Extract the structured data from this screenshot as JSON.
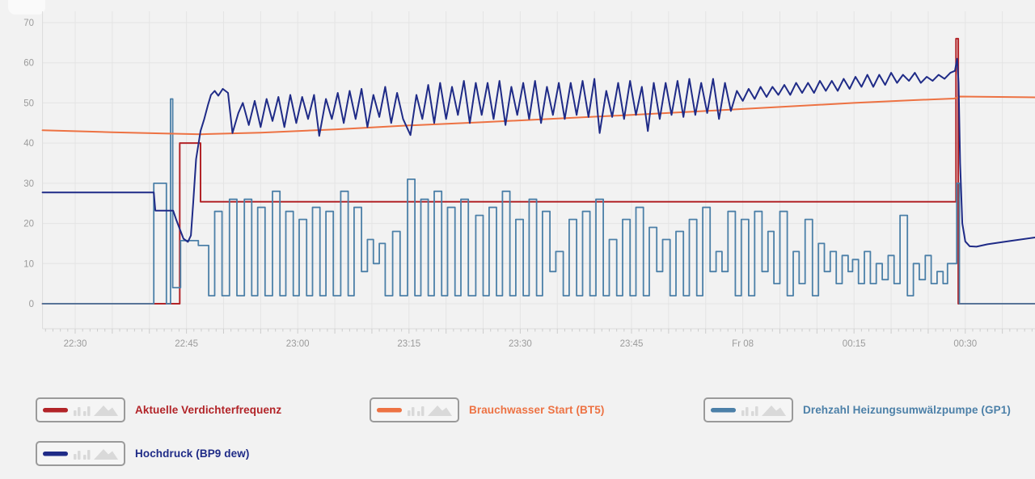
{
  "page": {
    "background": "#f2f2f2"
  },
  "axis_colors": {
    "grid": "#e4e4e4",
    "frame": "#dcdcdc",
    "tick": "#cccccc",
    "label_text": "#9b9b9b"
  },
  "chart_data": {
    "type": "line",
    "title": "",
    "xlabel": "",
    "ylabel": "",
    "x_axis": {
      "unit": "minutes since 22:30",
      "range": [
        -4.4,
        129.4
      ],
      "gridline_every_min": 5,
      "minor_tick_every_min": 1,
      "labels": [
        {
          "t": 0,
          "label": "22:30"
        },
        {
          "t": 15,
          "label": "22:45"
        },
        {
          "t": 30,
          "label": "23:00"
        },
        {
          "t": 45,
          "label": "23:15"
        },
        {
          "t": 60,
          "label": "23:30"
        },
        {
          "t": 75,
          "label": "23:45"
        },
        {
          "t": 90,
          "label": "Fr 08"
        },
        {
          "t": 105,
          "label": "00:15"
        },
        {
          "t": 120,
          "label": "00:30"
        }
      ]
    },
    "y_axis": {
      "ticks": [
        0,
        10,
        20,
        30,
        40,
        50,
        60,
        70
      ],
      "range": [
        0,
        70
      ],
      "grid": true
    },
    "series": [
      {
        "name": "Aktuelle Verdichterfrequenz",
        "color": "#b22428",
        "render": "step",
        "width": 2,
        "points": [
          [
            -4.4,
            0
          ],
          [
            14.1,
            40
          ],
          [
            16.9,
            25.4
          ],
          [
            118.75,
            66
          ],
          [
            119.05,
            0
          ],
          [
            129.4,
            0
          ]
        ]
      },
      {
        "name": "Drehzahl Heizungsumwälzpumpe (GP1)",
        "color": "#4c80a8",
        "render": "step",
        "width": 1.8,
        "points": [
          [
            -4.4,
            0
          ],
          [
            10.6,
            30
          ],
          [
            12.3,
            0
          ],
          [
            12.85,
            51
          ],
          [
            13.15,
            4
          ],
          [
            14.2,
            15.7
          ],
          [
            16.6,
            14.5
          ],
          [
            18.0,
            2
          ],
          [
            18.8,
            23
          ],
          [
            19.8,
            2
          ],
          [
            20.8,
            26
          ],
          [
            21.8,
            2
          ],
          [
            22.8,
            26
          ],
          [
            23.8,
            2
          ],
          [
            24.6,
            24
          ],
          [
            25.6,
            2
          ],
          [
            26.6,
            28
          ],
          [
            27.6,
            2
          ],
          [
            28.4,
            23
          ],
          [
            29.4,
            2
          ],
          [
            30.2,
            21
          ],
          [
            31.2,
            2
          ],
          [
            32.0,
            24
          ],
          [
            33.0,
            2
          ],
          [
            33.8,
            23
          ],
          [
            34.8,
            2
          ],
          [
            35.8,
            28
          ],
          [
            36.8,
            2
          ],
          [
            37.6,
            24
          ],
          [
            38.6,
            8
          ],
          [
            39.4,
            16
          ],
          [
            40.2,
            10
          ],
          [
            41.0,
            15
          ],
          [
            41.8,
            2
          ],
          [
            42.8,
            18
          ],
          [
            43.8,
            2
          ],
          [
            44.8,
            31
          ],
          [
            45.8,
            2
          ],
          [
            46.6,
            26
          ],
          [
            47.6,
            2
          ],
          [
            48.4,
            28
          ],
          [
            49.4,
            2
          ],
          [
            50.2,
            24
          ],
          [
            51.2,
            2
          ],
          [
            52.0,
            26
          ],
          [
            53.0,
            2
          ],
          [
            54.0,
            22
          ],
          [
            55.0,
            2
          ],
          [
            55.8,
            24
          ],
          [
            56.8,
            2
          ],
          [
            57.6,
            28
          ],
          [
            58.6,
            2
          ],
          [
            59.4,
            21
          ],
          [
            60.4,
            2
          ],
          [
            61.2,
            26
          ],
          [
            62.2,
            2
          ],
          [
            63.0,
            23
          ],
          [
            64.0,
            8
          ],
          [
            64.8,
            13
          ],
          [
            65.8,
            2
          ],
          [
            66.6,
            21
          ],
          [
            67.6,
            2
          ],
          [
            68.4,
            23
          ],
          [
            69.4,
            2
          ],
          [
            70.2,
            26
          ],
          [
            71.2,
            2
          ],
          [
            72.0,
            16
          ],
          [
            73.0,
            2
          ],
          [
            73.8,
            21
          ],
          [
            74.8,
            2
          ],
          [
            75.6,
            24
          ],
          [
            76.6,
            2
          ],
          [
            77.4,
            19
          ],
          [
            78.4,
            8
          ],
          [
            79.2,
            16
          ],
          [
            80.2,
            2
          ],
          [
            81.0,
            18
          ],
          [
            82.0,
            2
          ],
          [
            82.8,
            21
          ],
          [
            83.8,
            2
          ],
          [
            84.6,
            24
          ],
          [
            85.6,
            8
          ],
          [
            86.4,
            13
          ],
          [
            87.2,
            8
          ],
          [
            88.0,
            23
          ],
          [
            89.0,
            2
          ],
          [
            89.8,
            21
          ],
          [
            90.8,
            2
          ],
          [
            91.6,
            23
          ],
          [
            92.6,
            8
          ],
          [
            93.4,
            18
          ],
          [
            94.2,
            5
          ],
          [
            95.0,
            23
          ],
          [
            96.0,
            2
          ],
          [
            96.8,
            13
          ],
          [
            97.6,
            5
          ],
          [
            98.4,
            21
          ],
          [
            99.4,
            2
          ],
          [
            100.2,
            15
          ],
          [
            101.0,
            8
          ],
          [
            101.8,
            13
          ],
          [
            102.6,
            5
          ],
          [
            103.4,
            12
          ],
          [
            104.2,
            8
          ],
          [
            104.8,
            11
          ],
          [
            105.6,
            5
          ],
          [
            106.4,
            13
          ],
          [
            107.2,
            5
          ],
          [
            108.0,
            10
          ],
          [
            108.8,
            6
          ],
          [
            109.6,
            12
          ],
          [
            110.4,
            5
          ],
          [
            111.2,
            22
          ],
          [
            112.2,
            2
          ],
          [
            113.0,
            10
          ],
          [
            113.8,
            6
          ],
          [
            114.6,
            12
          ],
          [
            115.4,
            5
          ],
          [
            116.2,
            8
          ],
          [
            117.0,
            5
          ],
          [
            117.6,
            10
          ],
          [
            118.85,
            30
          ],
          [
            119.2,
            0
          ],
          [
            129.4,
            0
          ]
        ]
      },
      {
        "name": "Brauchwasser Start (BT5)",
        "color": "#ed7243",
        "render": "linear",
        "width": 2,
        "points": [
          [
            -4.4,
            43.2
          ],
          [
            5,
            42.7
          ],
          [
            12,
            42.4
          ],
          [
            17,
            42.2
          ],
          [
            25,
            42.6
          ],
          [
            35,
            43.4
          ],
          [
            45,
            44.4
          ],
          [
            55,
            45.2
          ],
          [
            65,
            46.1
          ],
          [
            75,
            47.0
          ],
          [
            85,
            48.0
          ],
          [
            95,
            49.0
          ],
          [
            105,
            50.0
          ],
          [
            113,
            50.7
          ],
          [
            118.5,
            51.1
          ],
          [
            119.3,
            51.6
          ],
          [
            129.4,
            51.4
          ]
        ]
      },
      {
        "name": "Hochdruck (BP9 dew)",
        "color": "#1f2b87",
        "render": "linear",
        "width": 2,
        "points": [
          [
            -4.4,
            27.7
          ],
          [
            10.6,
            27.7
          ],
          [
            10.8,
            23.2
          ],
          [
            13.2,
            23.2
          ],
          [
            13.6,
            21
          ],
          [
            14.6,
            16.2
          ],
          [
            15.2,
            15.4
          ],
          [
            15.6,
            17
          ],
          [
            15.9,
            25
          ],
          [
            16.3,
            36
          ],
          [
            16.9,
            43
          ],
          [
            17.4,
            46
          ],
          [
            17.9,
            49.5
          ],
          [
            18.3,
            52
          ],
          [
            18.8,
            53
          ],
          [
            19.3,
            51.8
          ],
          [
            19.9,
            53.5
          ],
          [
            20.6,
            52.5
          ],
          [
            21.2,
            42.5
          ],
          [
            22.0,
            47.5
          ],
          [
            22.6,
            50
          ],
          [
            23.4,
            44.5
          ],
          [
            24.2,
            50.5
          ],
          [
            25.0,
            44
          ],
          [
            25.8,
            51
          ],
          [
            26.6,
            45.5
          ],
          [
            27.4,
            51.5
          ],
          [
            28.2,
            44
          ],
          [
            29.0,
            52
          ],
          [
            29.8,
            45
          ],
          [
            30.6,
            51.5
          ],
          [
            31.4,
            46
          ],
          [
            32.2,
            52
          ],
          [
            32.9,
            41.8
          ],
          [
            33.8,
            51
          ],
          [
            34.6,
            46
          ],
          [
            35.4,
            52.5
          ],
          [
            36.2,
            45
          ],
          [
            37.0,
            53
          ],
          [
            37.8,
            46
          ],
          [
            38.6,
            53.5
          ],
          [
            39.4,
            44
          ],
          [
            40.2,
            52
          ],
          [
            41.0,
            46.5
          ],
          [
            41.8,
            54
          ],
          [
            42.6,
            45
          ],
          [
            43.4,
            52.5
          ],
          [
            44.2,
            46
          ],
          [
            45.2,
            42
          ],
          [
            46.0,
            52
          ],
          [
            46.8,
            46
          ],
          [
            47.6,
            54.5
          ],
          [
            48.4,
            45
          ],
          [
            49.2,
            55
          ],
          [
            50.0,
            46
          ],
          [
            50.8,
            54
          ],
          [
            51.6,
            47
          ],
          [
            52.4,
            55.5
          ],
          [
            53.2,
            45
          ],
          [
            54.0,
            55
          ],
          [
            54.8,
            47
          ],
          [
            55.6,
            55
          ],
          [
            56.4,
            46
          ],
          [
            57.2,
            55.5
          ],
          [
            58.0,
            44.5
          ],
          [
            58.8,
            54
          ],
          [
            59.6,
            47
          ],
          [
            60.4,
            55
          ],
          [
            61.2,
            46
          ],
          [
            62.0,
            55.5
          ],
          [
            62.8,
            45
          ],
          [
            63.6,
            54
          ],
          [
            64.4,
            47
          ],
          [
            65.2,
            55
          ],
          [
            66.0,
            46
          ],
          [
            66.8,
            55
          ],
          [
            67.6,
            47
          ],
          [
            68.4,
            55.5
          ],
          [
            69.2,
            46.5
          ],
          [
            70.0,
            56
          ],
          [
            70.7,
            42.5
          ],
          [
            71.6,
            53
          ],
          [
            72.4,
            46.5
          ],
          [
            73.2,
            55
          ],
          [
            74.0,
            46
          ],
          [
            74.8,
            55.5
          ],
          [
            75.6,
            47
          ],
          [
            76.4,
            54
          ],
          [
            77.2,
            43
          ],
          [
            78.0,
            55
          ],
          [
            78.8,
            46
          ],
          [
            79.6,
            55
          ],
          [
            80.4,
            47
          ],
          [
            81.2,
            55.5
          ],
          [
            82.0,
            46.5
          ],
          [
            82.8,
            56
          ],
          [
            83.6,
            47
          ],
          [
            84.4,
            55
          ],
          [
            85.2,
            47.5
          ],
          [
            86.0,
            56
          ],
          [
            86.8,
            46
          ],
          [
            87.6,
            55
          ],
          [
            88.4,
            48
          ],
          [
            89.2,
            53
          ],
          [
            90.0,
            50.5
          ],
          [
            90.8,
            53.5
          ],
          [
            91.6,
            51
          ],
          [
            92.4,
            54
          ],
          [
            93.2,
            51.5
          ],
          [
            94.0,
            54
          ],
          [
            94.8,
            52
          ],
          [
            95.6,
            54.5
          ],
          [
            96.4,
            52
          ],
          [
            97.2,
            55
          ],
          [
            98.0,
            52.5
          ],
          [
            98.8,
            55
          ],
          [
            99.6,
            52.5
          ],
          [
            100.4,
            55.5
          ],
          [
            101.2,
            53
          ],
          [
            102.0,
            55.5
          ],
          [
            102.8,
            53
          ],
          [
            103.6,
            56
          ],
          [
            104.4,
            53.5
          ],
          [
            105.2,
            56.5
          ],
          [
            106.0,
            54
          ],
          [
            106.8,
            57
          ],
          [
            107.6,
            54
          ],
          [
            108.4,
            57
          ],
          [
            109.2,
            54.5
          ],
          [
            110.0,
            57.5
          ],
          [
            110.8,
            55
          ],
          [
            111.6,
            57
          ],
          [
            112.4,
            55.5
          ],
          [
            113.2,
            57.5
          ],
          [
            114.0,
            55
          ],
          [
            114.8,
            56.5
          ],
          [
            115.6,
            55.5
          ],
          [
            116.4,
            57
          ],
          [
            117.2,
            56
          ],
          [
            118.0,
            57.5
          ],
          [
            118.6,
            58
          ],
          [
            118.9,
            61
          ],
          [
            119.1,
            55
          ],
          [
            119.3,
            35
          ],
          [
            119.6,
            20
          ],
          [
            120.0,
            15.5
          ],
          [
            120.6,
            14.3
          ],
          [
            121.5,
            14.2
          ],
          [
            123.0,
            14.8
          ],
          [
            126.0,
            15.6
          ],
          [
            129.4,
            16.5
          ]
        ]
      }
    ],
    "legend_position": "bottom"
  },
  "legend": {
    "type_icons": [
      "line",
      "bars",
      "area"
    ],
    "icon_color": "#d9d9d9",
    "items": [
      {
        "label": "Aktuelle Verdichterfrequenz",
        "color": "#b22428"
      },
      {
        "label": "Brauchwasser Start (BT5)",
        "color": "#ed7243"
      },
      {
        "label": "Drehzahl Heizungsumwälzpumpe (GP1)",
        "color": "#4c80a8"
      },
      {
        "label": "Hochdruck (BP9 dew)",
        "color": "#1f2b87"
      }
    ]
  }
}
